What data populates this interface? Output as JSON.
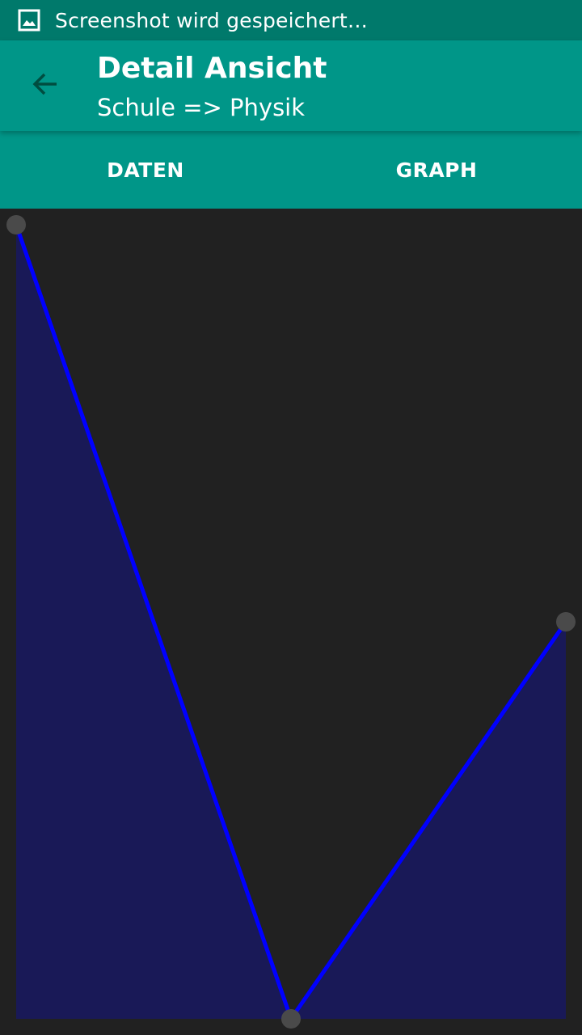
{
  "status_bar": {
    "icon": "image-icon",
    "text": "Screenshot wird gespeichert…"
  },
  "app_bar": {
    "back_icon": "arrow-left-icon",
    "title": "Detail Ansicht",
    "subtitle": "Schule => Physik"
  },
  "tabs": [
    {
      "label": "DATEN"
    },
    {
      "label": "GRAPH"
    }
  ],
  "colors": {
    "status_bar": "#00796b",
    "app_bar": "#009688",
    "background": "#212121",
    "line": "#0000ff",
    "fill": "#191957",
    "point": "#4a4a4a"
  },
  "chart_data": {
    "type": "area",
    "x": [
      0,
      1,
      2
    ],
    "values": [
      3,
      1,
      2
    ],
    "ylim": [
      1,
      3
    ],
    "grid": false,
    "title": "",
    "xlabel": "",
    "ylabel": ""
  }
}
